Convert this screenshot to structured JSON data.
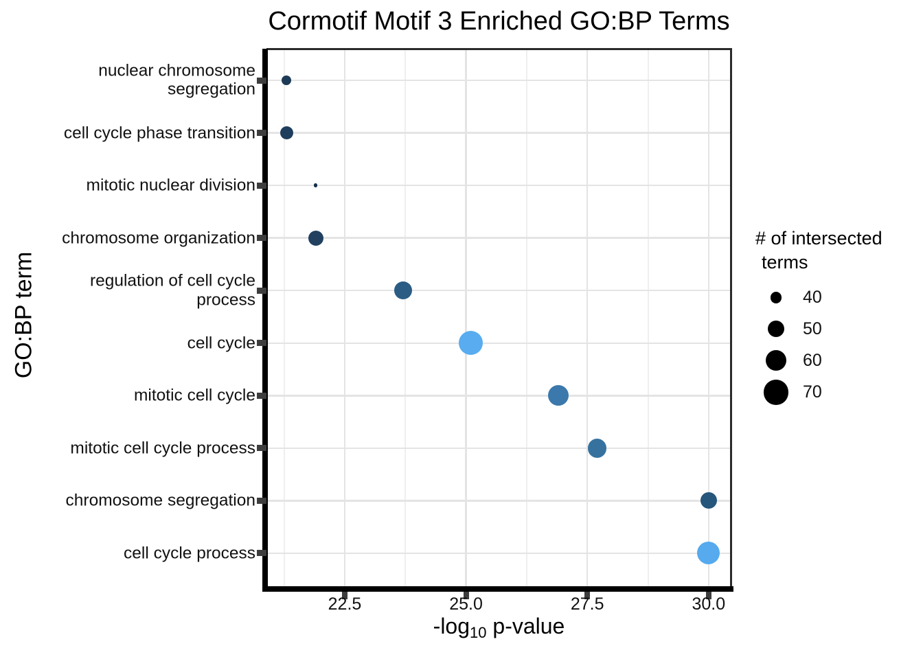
{
  "title": "Cormotif Motif 3 Enriched GO:BP Terms",
  "axes": {
    "y_title": "GO:BP term",
    "x_title_prefix": "-log",
    "x_title_sub": "10",
    "x_title_suffix": " p-value"
  },
  "legend": {
    "title_line1": "# of intersected",
    "title_line2": "terms",
    "dot_color": "#000000",
    "items": [
      {
        "label": "40",
        "value": 40
      },
      {
        "label": "50",
        "value": 50
      },
      {
        "label": "60",
        "value": 60
      },
      {
        "label": "70",
        "value": 70
      }
    ]
  },
  "chart_data": {
    "type": "scatter",
    "title": "Cormotif Motif 3 Enriched GO:BP Terms",
    "xlabel": "-log10 p-value",
    "ylabel": "GO:BP term",
    "xlim": [
      20.9,
      30.45
    ],
    "grid": true,
    "legend_position": "right",
    "size_legend_title": "# of intersected terms",
    "size_legend_values": [
      40,
      50,
      60,
      70
    ],
    "x_ticks": [
      {
        "value": 22.5,
        "label": "22.5"
      },
      {
        "value": 25.0,
        "label": "25.0"
      },
      {
        "value": 27.5,
        "label": "27.5"
      },
      {
        "value": 30.0,
        "label": "30.0"
      }
    ],
    "points": [
      {
        "term": "nuclear chromosome segregation",
        "label_lines": [
          "nuclear chromosome",
          "segregation"
        ],
        "x": 21.3,
        "intersected_terms": 37,
        "color": "#1d3b56"
      },
      {
        "term": "cell cycle phase transition",
        "label_lines": [
          "cell cycle phase transition"
        ],
        "x": 21.3,
        "intersected_terms": 43,
        "color": "#1f3d5c"
      },
      {
        "term": "mitotic nuclear division",
        "label_lines": [
          "mitotic nuclear division"
        ],
        "x": 21.9,
        "intersected_terms": 27,
        "color": "#14304c"
      },
      {
        "term": "chromosome organization",
        "label_lines": [
          "chromosome organization"
        ],
        "x": 21.9,
        "intersected_terms": 47,
        "color": "#224160"
      },
      {
        "term": "regulation of cell cycle process",
        "label_lines": [
          "regulation of cell cycle",
          "process"
        ],
        "x": 23.7,
        "intersected_terms": 53,
        "color": "#2b5c83"
      },
      {
        "term": "cell cycle",
        "label_lines": [
          "cell cycle"
        ],
        "x": 25.1,
        "intersected_terms": 67,
        "color": "#58acef"
      },
      {
        "term": "mitotic cell cycle",
        "label_lines": [
          "mitotic cell cycle"
        ],
        "x": 26.9,
        "intersected_terms": 59,
        "color": "#3b78ab"
      },
      {
        "term": "mitotic cell cycle process",
        "label_lines": [
          "mitotic cell cycle process"
        ],
        "x": 27.7,
        "intersected_terms": 55,
        "color": "#37729f"
      },
      {
        "term": "chromosome segregation",
        "label_lines": [
          "chromosome segregation"
        ],
        "x": 30.0,
        "intersected_terms": 50,
        "color": "#26567b"
      },
      {
        "term": "cell cycle process",
        "label_lines": [
          "cell cycle process"
        ],
        "x": 30.0,
        "intersected_terms": 64,
        "color": "#56aaed"
      }
    ]
  }
}
